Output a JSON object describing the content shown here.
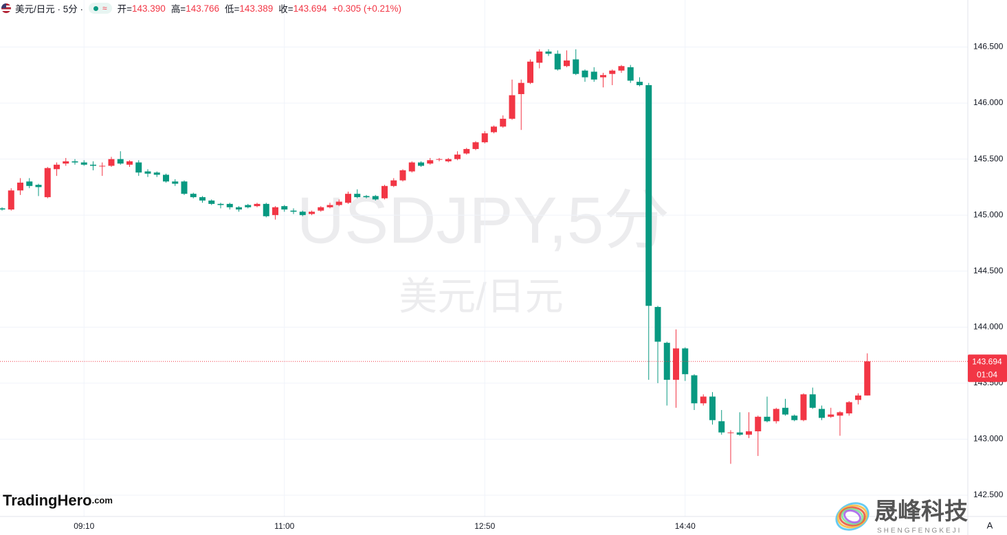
{
  "header": {
    "symbol": "美元/日元 · 5分 ·",
    "pill_icon": "≈",
    "items": [
      {
        "name": "开=",
        "text": "143.390"
      },
      {
        "name": "高=",
        "text": "143.766"
      },
      {
        "name": "低=",
        "text": "143.389"
      },
      {
        "name": "收=",
        "text": "143.694"
      },
      {
        "name": "",
        "text": "+0.305 (+0.21%)"
      }
    ]
  },
  "chart_data": {
    "type": "candlestick",
    "watermark": "USDJPY,5分",
    "watermark_sub": "美元/日元",
    "up_color": "#f23645",
    "down_color": "#089981",
    "grid": true,
    "categories": [
      null,
      null,
      null,
      null,
      null,
      null,
      null,
      null,
      null,
      "09:10",
      null,
      null,
      null,
      null,
      null,
      null,
      null,
      null,
      null,
      null,
      null,
      null,
      null,
      null,
      null,
      null,
      null,
      null,
      null,
      null,
      null,
      "11:00",
      null,
      null,
      null,
      null,
      null,
      null,
      null,
      null,
      null,
      null,
      null,
      null,
      null,
      null,
      null,
      null,
      null,
      null,
      null,
      null,
      null,
      "12:50",
      null,
      null,
      null,
      null,
      null,
      null,
      null,
      null,
      null,
      null,
      null,
      null,
      null,
      null,
      null,
      null,
      null,
      null,
      null,
      null,
      null,
      "14:40",
      null,
      null,
      null,
      null,
      null,
      null,
      null,
      null,
      null,
      null,
      null,
      null,
      null,
      null,
      null,
      null,
      null,
      null,
      null,
      null
    ],
    "open": [
      145.06,
      145.05,
      145.22,
      145.3,
      145.27,
      145.16,
      145.41,
      145.46,
      145.48,
      145.47,
      145.45,
      145.44,
      145.44,
      145.5,
      145.45,
      145.47,
      145.39,
      145.38,
      145.36,
      145.3,
      145.3,
      145.19,
      145.16,
      145.13,
      145.1,
      145.1,
      145.07,
      145.09,
      145.08,
      145.1,
      145.0,
      145.08,
      145.04,
      145.03,
      145.01,
      145.04,
      145.07,
      145.09,
      145.11,
      145.19,
      145.17,
      145.17,
      145.15,
      145.26,
      145.31,
      145.39,
      145.47,
      145.46,
      145.5,
      145.48,
      145.5,
      145.55,
      145.59,
      145.65,
      145.74,
      145.79,
      145.86,
      146.08,
      146.18,
      146.36,
      146.46,
      146.44,
      146.33,
      146.39,
      146.29,
      146.28,
      146.23,
      146.26,
      146.29,
      146.32,
      146.19,
      146.16,
      144.18,
      143.86,
      143.53,
      143.81,
      143.57,
      143.32,
      143.38,
      143.16,
      143.06,
      143.06,
      143.04,
      143.07,
      143.2,
      143.16,
      143.28,
      143.21,
      143.17,
      143.4,
      143.27,
      143.2,
      143.21,
      143.23,
      143.35,
      143.39
    ],
    "high": [
      145.07,
      145.24,
      145.33,
      145.33,
      145.28,
      145.43,
      145.47,
      145.51,
      145.5,
      145.49,
      145.48,
      145.47,
      145.52,
      145.57,
      145.49,
      145.49,
      145.41,
      145.39,
      145.37,
      145.32,
      145.31,
      145.2,
      145.17,
      145.14,
      145.11,
      145.11,
      145.08,
      145.1,
      145.11,
      145.11,
      145.08,
      145.09,
      145.06,
      145.04,
      145.04,
      145.08,
      145.11,
      145.14,
      145.21,
      145.23,
      145.18,
      145.18,
      145.27,
      145.33,
      145.41,
      145.48,
      145.48,
      145.51,
      145.51,
      145.51,
      145.57,
      145.6,
      145.66,
      145.75,
      145.8,
      145.89,
      146.21,
      146.21,
      146.39,
      146.48,
      146.48,
      146.47,
      146.47,
      146.48,
      146.3,
      146.32,
      146.27,
      146.3,
      146.34,
      146.34,
      146.23,
      146.18,
      144.19,
      143.87,
      143.98,
      143.82,
      143.58,
      143.4,
      143.42,
      143.26,
      143.08,
      143.24,
      143.24,
      143.21,
      143.38,
      143.28,
      143.36,
      143.22,
      143.41,
      143.46,
      143.3,
      143.28,
      143.25,
      143.34,
      143.41,
      143.766
    ],
    "low": [
      145.04,
      145.04,
      145.18,
      145.24,
      145.17,
      145.15,
      145.35,
      145.44,
      145.45,
      145.44,
      145.4,
      145.35,
      145.43,
      145.45,
      145.43,
      145.35,
      145.34,
      145.34,
      145.29,
      145.26,
      145.18,
      145.15,
      145.11,
      145.09,
      145.06,
      145.05,
      145.03,
      145.06,
      145.07,
      144.98,
      144.96,
      145.03,
      145.01,
      144.99,
      145.0,
      145.03,
      145.06,
      145.08,
      145.1,
      145.15,
      145.15,
      145.13,
      145.14,
      145.25,
      145.3,
      145.38,
      145.43,
      145.45,
      145.48,
      145.47,
      145.49,
      145.54,
      145.58,
      145.64,
      145.73,
      145.78,
      145.85,
      145.76,
      146.17,
      146.31,
      146.42,
      146.29,
      146.32,
      146.25,
      146.19,
      146.19,
      146.14,
      146.16,
      146.27,
      146.18,
      146.15,
      143.53,
      143.5,
      143.3,
      143.28,
      143.52,
      143.26,
      143.3,
      143.13,
      143.04,
      142.78,
      143.03,
      143.01,
      142.85,
      143.15,
      143.14,
      143.21,
      143.16,
      143.16,
      143.27,
      143.17,
      143.19,
      143.03,
      143.21,
      143.31,
      143.389
    ],
    "close": [
      145.05,
      145.22,
      145.29,
      145.26,
      145.25,
      145.42,
      145.45,
      145.48,
      145.47,
      145.45,
      145.44,
      145.44,
      145.5,
      145.46,
      145.48,
      145.38,
      145.37,
      145.36,
      145.3,
      145.28,
      145.19,
      145.16,
      145.13,
      145.1,
      145.09,
      145.07,
      145.05,
      145.07,
      145.1,
      144.99,
      145.07,
      145.05,
      145.03,
      145.0,
      145.03,
      145.07,
      145.09,
      145.12,
      145.19,
      145.16,
      145.16,
      145.14,
      145.26,
      145.31,
      145.4,
      145.47,
      145.44,
      145.49,
      145.5,
      145.5,
      145.54,
      145.59,
      145.65,
      145.73,
      145.79,
      145.86,
      146.07,
      146.18,
      146.37,
      146.46,
      146.44,
      146.3,
      146.38,
      146.26,
      146.23,
      146.21,
      146.25,
      146.29,
      146.33,
      146.2,
      146.16,
      144.19,
      143.87,
      143.53,
      143.81,
      143.58,
      143.32,
      143.38,
      143.17,
      143.06,
      143.06,
      143.04,
      143.07,
      143.2,
      143.16,
      143.27,
      143.22,
      143.17,
      143.4,
      143.28,
      143.19,
      143.22,
      143.24,
      143.33,
      143.39,
      143.694
    ],
    "ylim": [
      142.31,
      146.92
    ],
    "yticks": [
      {
        "value": 142.5,
        "label": "142.500"
      },
      {
        "value": 143,
        "label": "143.000"
      },
      {
        "value": 143.5,
        "label": "143.500"
      },
      {
        "value": 144,
        "label": "144.000"
      },
      {
        "value": 144.5,
        "label": "144.500"
      },
      {
        "value": 145,
        "label": "145.000"
      },
      {
        "value": 145.5,
        "label": "145.500"
      },
      {
        "value": 146,
        "label": "146.000"
      },
      {
        "value": 146.5,
        "label": "146.500"
      }
    ],
    "last_price": {
      "value": 143.694,
      "label": "143.694"
    },
    "countdown": "01:04"
  },
  "logos": {
    "left_main": "TradingHero",
    "left_suffix": ".com",
    "right_main": "晟峰科技",
    "right_sub": "SHENGFENGKEJI",
    "scale_button": "A"
  }
}
